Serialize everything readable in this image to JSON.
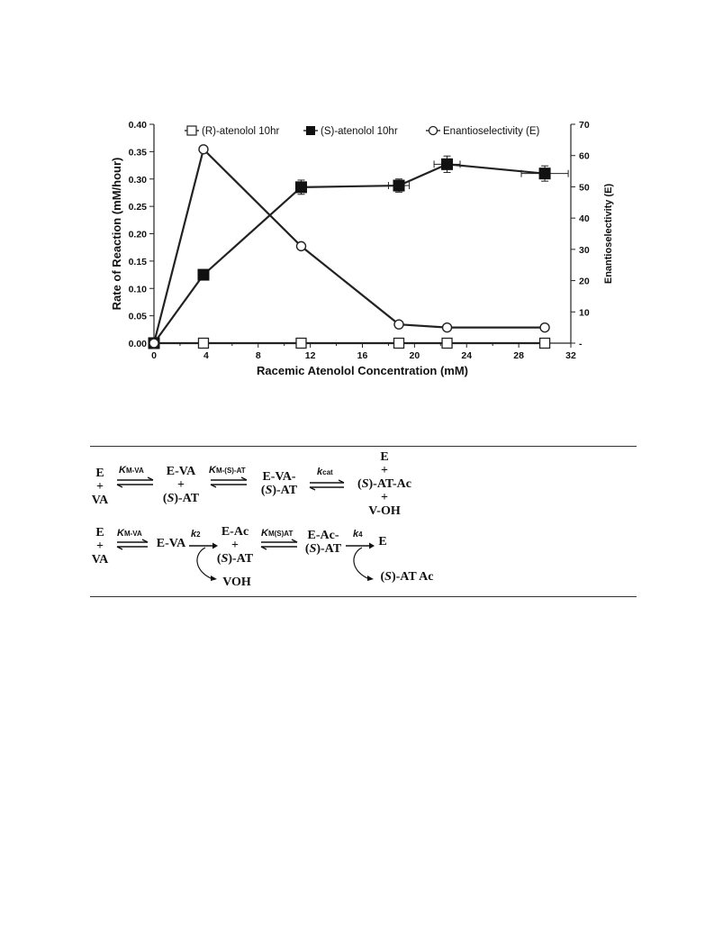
{
  "chart_data": {
    "type": "line",
    "xlabel": "Racemic Atenolol Concentration (mM)",
    "ylabel": "Rate of Reaction (mM/hour)",
    "y2label": "Enantioselectivity (E)",
    "xlim": [
      0,
      32
    ],
    "ylim": [
      0,
      0.4
    ],
    "y2lim": [
      0,
      70
    ],
    "xticks": [
      "0",
      "4",
      "8",
      "12",
      "16",
      "20",
      "24",
      "28",
      "32"
    ],
    "yticks": [
      "0.00",
      "0.05",
      "0.10",
      "0.15",
      "0.20",
      "0.25",
      "0.30",
      "0.35",
      "0.40"
    ],
    "y2ticks": [
      "-",
      "10",
      "20",
      "30",
      "40",
      "50",
      "60",
      "70"
    ],
    "legend_position": "top",
    "grid": false,
    "series": [
      {
        "name": "(R)-atenolol 10hr",
        "axis": "left",
        "marker": "open-square",
        "x": [
          0,
          3.8,
          11.3,
          18.8,
          22.5,
          30
        ],
        "y": [
          0,
          0,
          0,
          0,
          0,
          0
        ]
      },
      {
        "name": "(S)-atenolol 10hr",
        "axis": "left",
        "marker": "filled-square",
        "x": [
          0,
          3.8,
          11.3,
          18.8,
          22.5,
          30
        ],
        "y": [
          0,
          0.125,
          0.285,
          0.288,
          0.327,
          0.31
        ],
        "yerr": [
          0,
          0,
          0.013,
          0.012,
          0.015,
          0.014
        ],
        "xerr": [
          0,
          0,
          0,
          0.8,
          1.0,
          1.8
        ]
      },
      {
        "name": "Enantioselectivity (E)",
        "axis": "right",
        "marker": "open-circle",
        "x": [
          0,
          3.8,
          11.3,
          18.8,
          22.5,
          30
        ],
        "y": [
          0,
          62,
          31,
          6,
          5,
          5
        ]
      }
    ]
  },
  "scheme": {
    "row1": {
      "e_va": [
        "E",
        "+",
        "VA"
      ],
      "k1": "K",
      "k1_sub": "M-VA",
      "complex1": [
        "E-VA",
        "+",
        "(S)-AT"
      ],
      "k2": "K",
      "k2_sub": "M-(S)-AT",
      "complex2": [
        "E-VA-",
        "(S)-AT"
      ],
      "k3": "k",
      "k3_sub": "cat",
      "products": [
        "E",
        "+",
        "(S)-AT-Ac",
        "+",
        "V-OH"
      ]
    },
    "row2": {
      "e_va": [
        "E",
        "+",
        "VA"
      ],
      "k1": "K",
      "k1_sub": "M-VA",
      "complex1": "E-VA",
      "k2": "k",
      "k2_sub": "2",
      "complex2": [
        "E-Ac",
        "+",
        "(S)-AT"
      ],
      "k3": "K",
      "k3_sub": "M(S)AT",
      "complex3": [
        "E-Ac-",
        "(S)-AT"
      ],
      "k4": "k",
      "k4_sub": "4",
      "product_e": "E",
      "byproduct1": "VOH",
      "byproduct2": "(S)-AT Ac"
    }
  }
}
